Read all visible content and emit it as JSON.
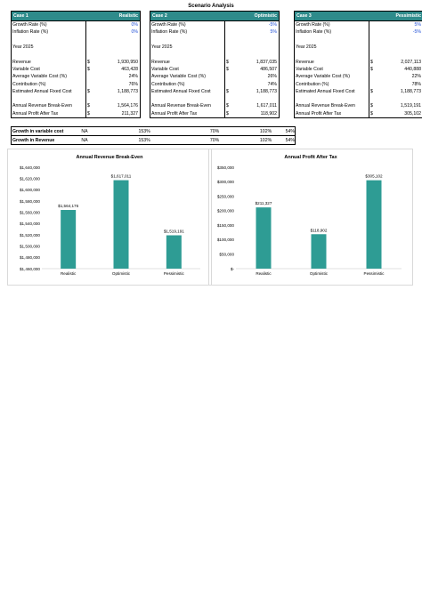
{
  "title": "Scenario Analysis",
  "cases": [
    {
      "name": "Case 1",
      "scenario": "Realistic",
      "growth_label": "Growth Rate (%)",
      "growth": "0%",
      "inflation_label": "Inflation Rate (%)",
      "inflation": "0%",
      "year": "Year 2025",
      "revenue_label": "Revenue",
      "revenue": "1,930,950",
      "varcost_label": "Variable Cost",
      "varcost": "463,428",
      "avgvar_label": "Average Variable Cost (%)",
      "avgvar": "24%",
      "contrib_label": "Contribution (%)",
      "contrib": "76%",
      "fixed_label": "Estimated Annual Fixed Cost",
      "fixed": "1,188,773",
      "breakeven_label": "Annual Revenue Break-Even",
      "breakeven": "1,564,176",
      "profit_label": "Annual Profit After Tax",
      "profit": "211,327",
      "currency": "$"
    },
    {
      "name": "Case 2",
      "scenario": "Optimistic",
      "growth_label": "Growth Rate (%)",
      "growth": "-5%",
      "inflation_label": "Inflation Rate (%)",
      "inflation": "5%",
      "year": "Year 2025",
      "revenue_label": "Revenue",
      "revenue": "1,837,035",
      "varcost_label": "Variable Cost",
      "varcost": "486,507",
      "avgvar_label": "Average Variable Cost (%)",
      "avgvar": "26%",
      "contrib_label": "Contribution (%)",
      "contrib": "74%",
      "fixed_label": "Estimated Annual Fixed Cost",
      "fixed": "1,188,773",
      "breakeven_label": "Annual Revenue Break-Even",
      "breakeven": "1,617,011",
      "profit_label": "Annual Profit After Tax",
      "profit": "118,902",
      "currency": "$"
    },
    {
      "name": "Case 3",
      "scenario": "Pessimistic",
      "growth_label": "Growth Rate (%)",
      "growth": "5%",
      "inflation_label": "Inflation Rate (%)",
      "inflation": "-5%",
      "year": "Year 2025",
      "revenue_label": "Revenue",
      "revenue": "2,027,113",
      "varcost_label": "Variable Cost",
      "varcost": "440,888",
      "avgvar_label": "Average Variable Cost (%)",
      "avgvar": "22%",
      "contrib_label": "Contribution (%)",
      "contrib": "78%",
      "fixed_label": "Estimated Annual Fixed Cost",
      "fixed": "1,188,773",
      "breakeven_label": "Annual Revenue Break-Even",
      "breakeven": "1,519,191",
      "profit_label": "Annual Profit After Tax",
      "profit": "305,102",
      "currency": "$"
    }
  ],
  "growth_table": {
    "rows": [
      {
        "label": "Growth in variable cost",
        "na": "NA",
        "c1": "153%",
        "c2": "70%",
        "c3": "102%",
        "c4": "54%"
      },
      {
        "label": "Growth in Revenue",
        "na": "NA",
        "c1": "153%",
        "c2": "70%",
        "c3": "102%",
        "c4": "54%"
      }
    ]
  },
  "colors": {
    "accent": "#2e8b8b",
    "blue": "#1f4fd6",
    "bar": "#2e9c94"
  },
  "chart_data": [
    {
      "type": "bar",
      "title": "Annual Revenue Break-Even",
      "categories": [
        "Realistic",
        "Optimistic",
        "Pessimistic"
      ],
      "values": [
        1564176,
        1617011,
        1519191
      ],
      "data_labels": [
        "$1,564,176",
        "$1,617,011",
        "$1,519,191"
      ],
      "ylim": [
        1460000,
        1640000
      ],
      "yticks": [
        1460000,
        1480000,
        1500000,
        1520000,
        1540000,
        1560000,
        1580000,
        1600000,
        1620000,
        1640000
      ],
      "ytick_labels": [
        "$1,460,000",
        "$1,480,000",
        "$1,500,000",
        "$1,520,000",
        "$1,540,000",
        "$1,560,000",
        "$1,580,000",
        "$1,600,000",
        "$1,620,000",
        "$1,640,000"
      ]
    },
    {
      "type": "bar",
      "title": "Annual Profit After Tax",
      "categories": [
        "Realistic",
        "Optimistic",
        "Pessimistic"
      ],
      "values": [
        211327,
        118902,
        305102
      ],
      "data_labels": [
        "$211,327",
        "$118,902",
        "$305,102"
      ],
      "ylim": [
        0,
        350000
      ],
      "yticks": [
        0,
        50000,
        100000,
        150000,
        200000,
        250000,
        300000,
        350000
      ],
      "ytick_labels": [
        "$-",
        "$50,000",
        "$100,000",
        "$150,000",
        "$200,000",
        "$250,000",
        "$300,000",
        "$350,000"
      ]
    }
  ]
}
